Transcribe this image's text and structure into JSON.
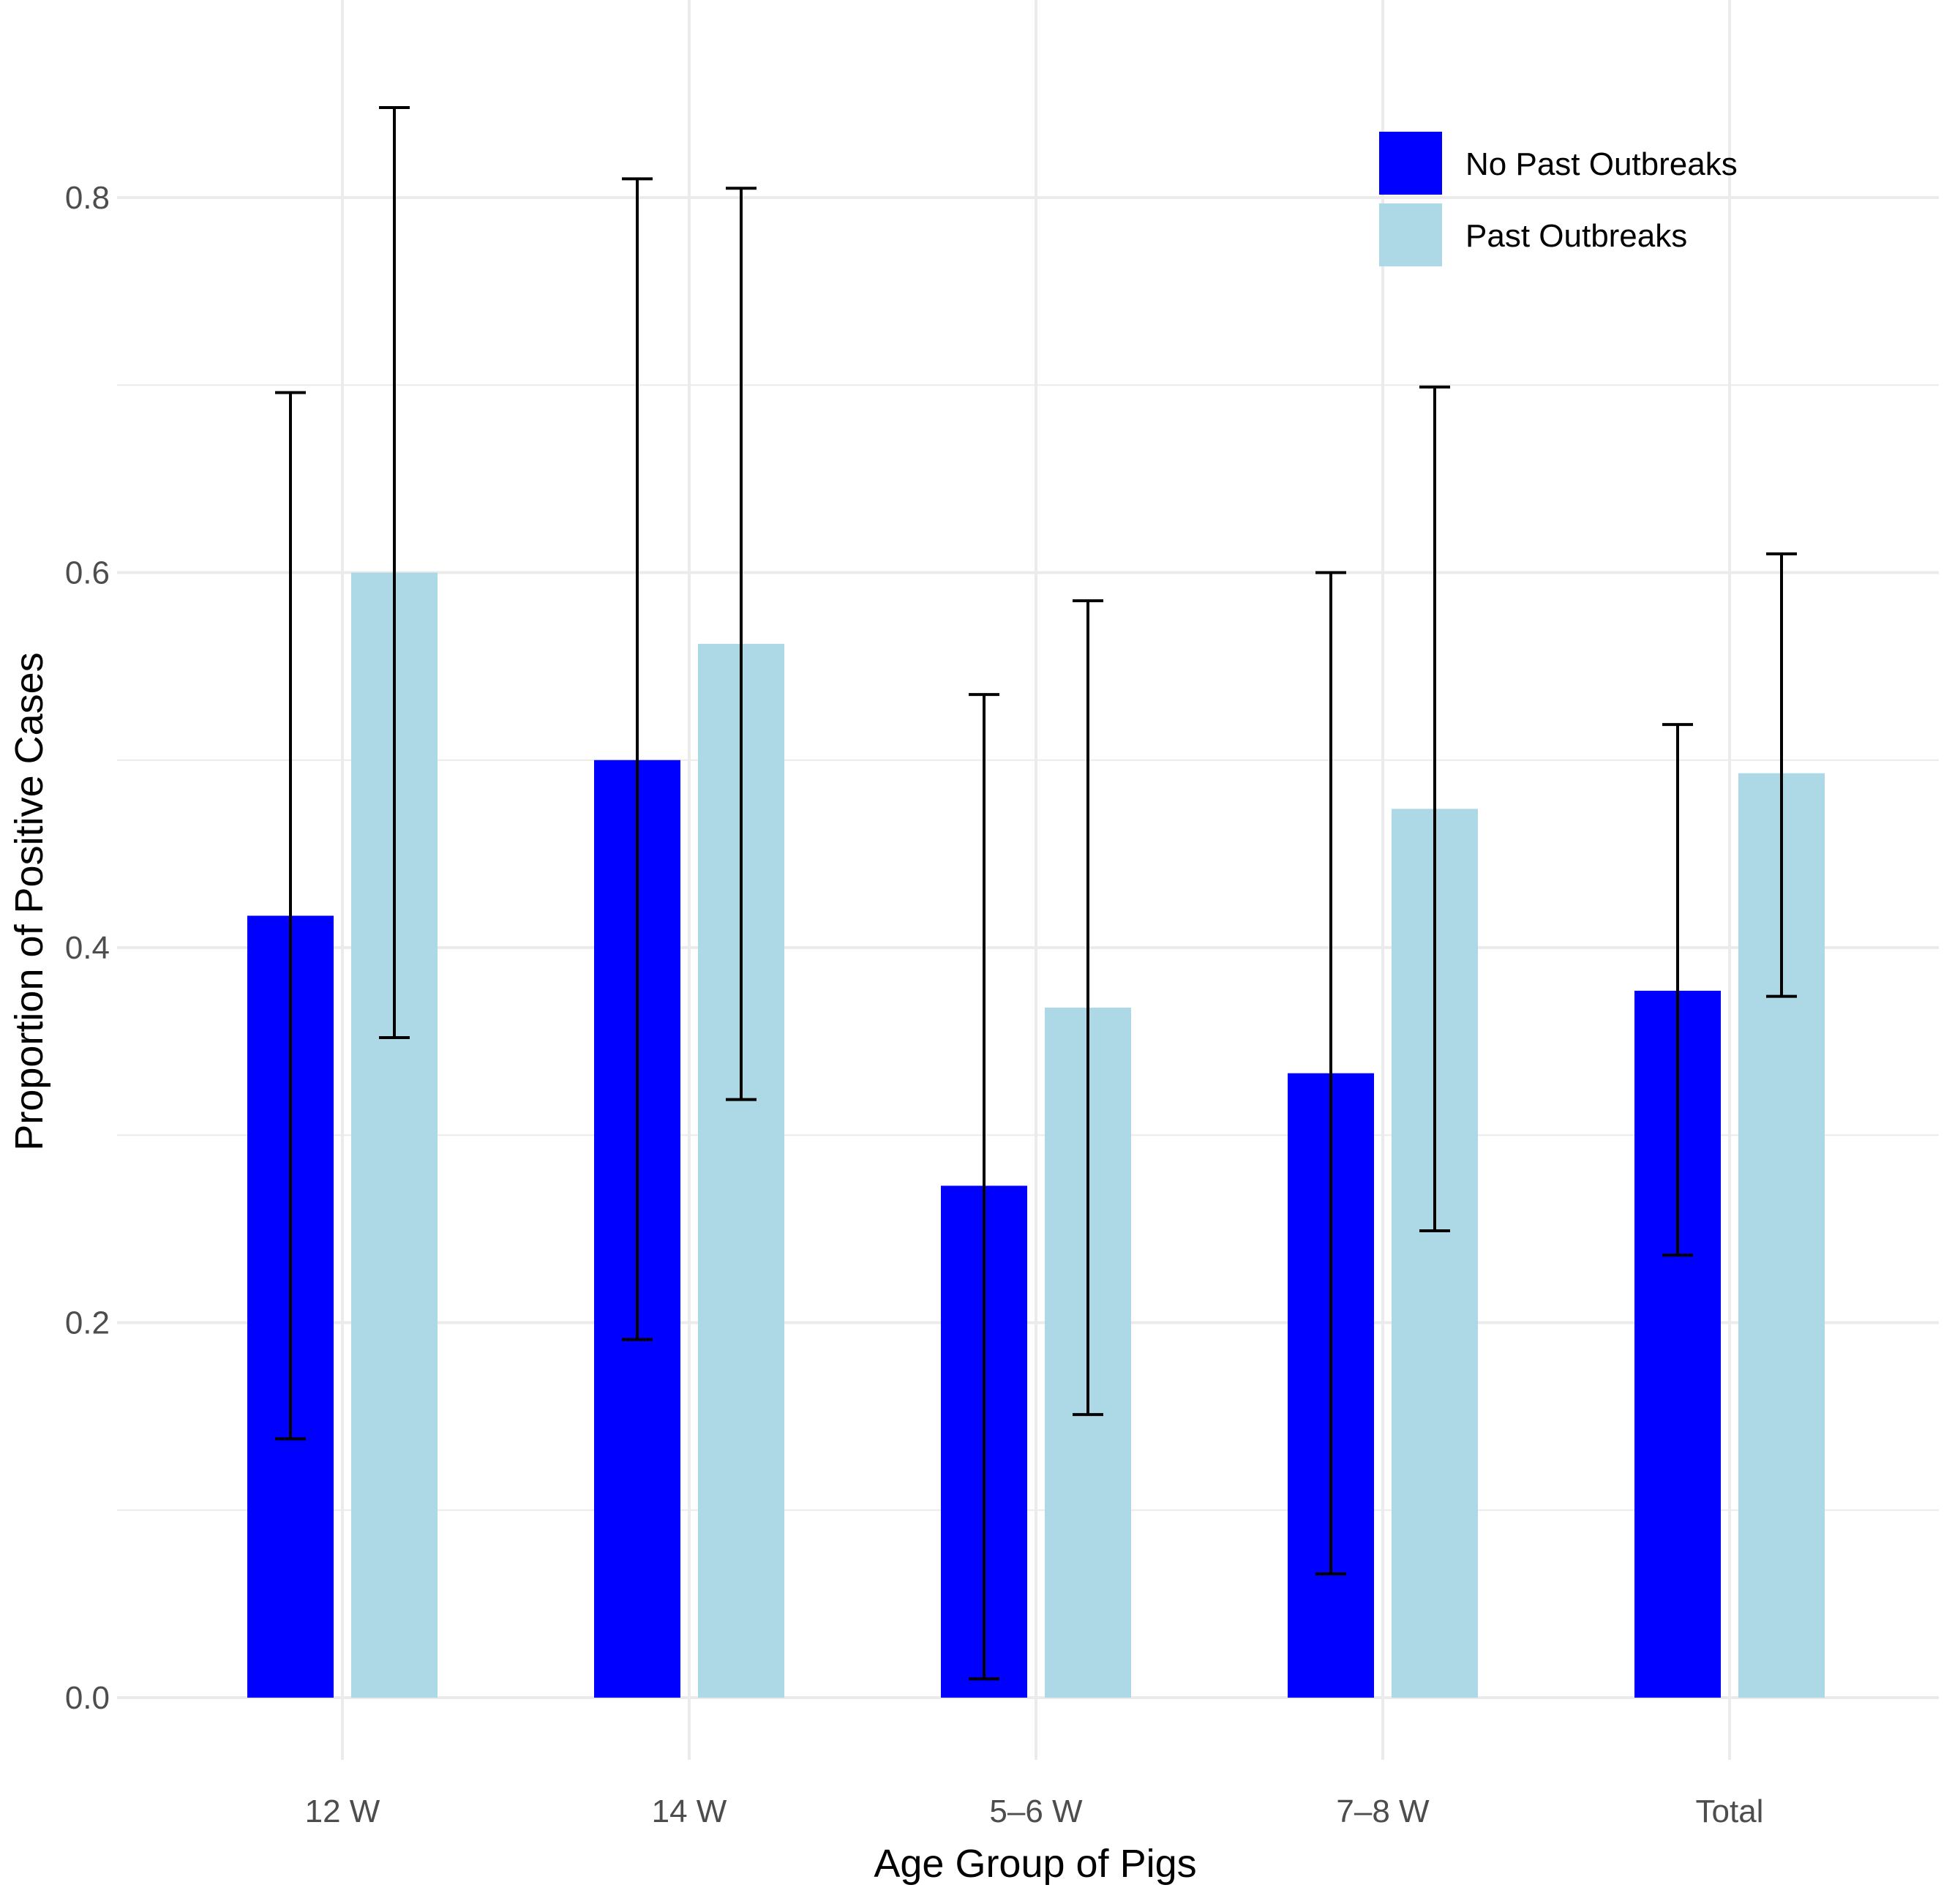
{
  "chart_data": {
    "type": "bar",
    "title": "",
    "xlabel": "Age Group of Pigs",
    "ylabel": "Proportion of Positive Cases",
    "categories": [
      "12 W",
      "14 W",
      "5–6 W",
      "7–8 W",
      "Total"
    ],
    "ylim": [
      -0.075,
      0.895
    ],
    "yticks": [
      0.0,
      0.2,
      0.4,
      0.6,
      0.8
    ],
    "ytick_labels": [
      "0.0",
      "0.2",
      "0.4",
      "0.6",
      "0.8"
    ],
    "grid": true,
    "legend_position": "top-right",
    "series": [
      {
        "name": "No Past Outbreaks",
        "color": "#0000ff",
        "values": [
          0.417,
          0.5,
          0.273,
          0.333,
          0.377
        ],
        "error_low": [
          0.138,
          0.191,
          0.01,
          0.066,
          0.236
        ],
        "error_high": [
          0.696,
          0.81,
          0.535,
          0.6,
          0.519
        ]
      },
      {
        "name": "Past Outbreaks",
        "color": "#add8e6",
        "values": [
          0.6,
          0.562,
          0.368,
          0.474,
          0.493
        ],
        "error_low": [
          0.352,
          0.319,
          0.151,
          0.249,
          0.374
        ],
        "error_high": [
          0.848,
          0.805,
          0.585,
          0.699,
          0.61
        ]
      }
    ]
  }
}
